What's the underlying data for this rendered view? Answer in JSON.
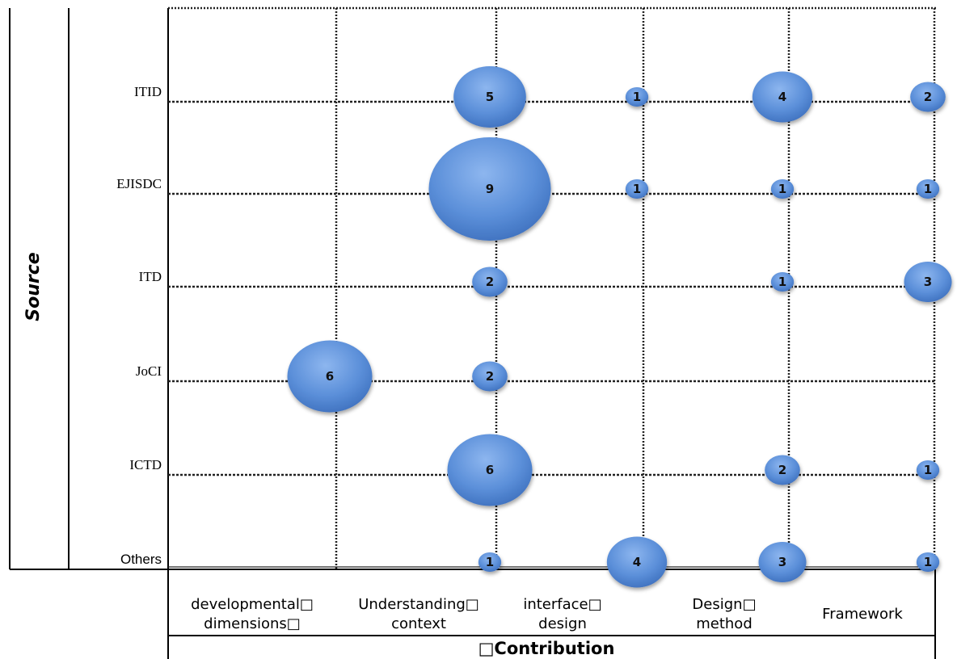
{
  "chart_data": {
    "type": "scatter",
    "subtype": "bubble",
    "xlabel": "□Contribution",
    "ylabel": "Source",
    "categories_x": [
      [
        "developmental□",
        "dimensions□"
      ],
      [
        "Understanding□",
        "context"
      ],
      [
        "interface□",
        "design"
      ],
      [
        "Design□",
        "method"
      ],
      [
        "Framework"
      ]
    ],
    "categories_y": [
      "ITID",
      "EJISDC",
      "ITD",
      "JoCI",
      "ICTD",
      "Others"
    ],
    "points": [
      {
        "source": "ITID",
        "contribution": "Understanding context",
        "value": 5
      },
      {
        "source": "ITID",
        "contribution": "interface design",
        "value": 1
      },
      {
        "source": "ITID",
        "contribution": "Design method",
        "value": 4
      },
      {
        "source": "ITID",
        "contribution": "Framework",
        "value": 2
      },
      {
        "source": "EJISDC",
        "contribution": "Understanding context",
        "value": 9
      },
      {
        "source": "EJISDC",
        "contribution": "interface design",
        "value": 1
      },
      {
        "source": "EJISDC",
        "contribution": "Design method",
        "value": 1
      },
      {
        "source": "EJISDC",
        "contribution": "Framework",
        "value": 1
      },
      {
        "source": "ITD",
        "contribution": "Understanding context",
        "value": 2
      },
      {
        "source": "ITD",
        "contribution": "Design method",
        "value": 1
      },
      {
        "source": "ITD",
        "contribution": "Framework",
        "value": 3
      },
      {
        "source": "JoCI",
        "contribution": "developmental dimensions",
        "value": 6
      },
      {
        "source": "JoCI",
        "contribution": "Understanding context",
        "value": 2
      },
      {
        "source": "ICTD",
        "contribution": "Understanding context",
        "value": 6
      },
      {
        "source": "ICTD",
        "contribution": "Design method",
        "value": 2
      },
      {
        "source": "ICTD",
        "contribution": "Framework",
        "value": 1
      },
      {
        "source": "Others",
        "contribution": "Understanding context",
        "value": 1
      },
      {
        "source": "Others",
        "contribution": "interface design",
        "value": 4
      },
      {
        "source": "Others",
        "contribution": "Design method",
        "value": 3
      },
      {
        "source": "Others",
        "contribution": "Framework",
        "value": 1
      }
    ],
    "bubble_color": "#5b8fd9",
    "grid": "dotted"
  }
}
